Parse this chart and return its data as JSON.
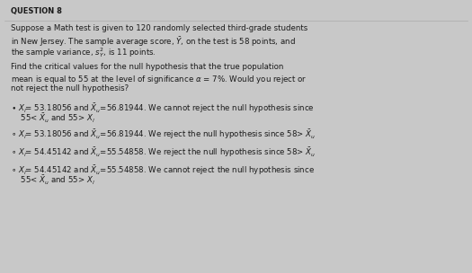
{
  "title": "QUESTION 8",
  "background_color": "#c8c8c8",
  "text_color": "#1a1a1a",
  "p1_lines": [
    "Suppose a Math test is given to 120 randomly selected third-grade students",
    "in New Jersey. The sample average score, $\\bar{Y}$, on the test is 58 points, and",
    "the sample variance, $s^2_Y$, is 11 points."
  ],
  "p2_lines": [
    "Find the critical values for the null hypothesis that the true population",
    "mean is equal to 55 at the level of significance $\\alpha$ = 7%. Would you reject or",
    "not reject the null hypothesis?"
  ],
  "options": [
    {
      "selected": true,
      "lines": [
        "$\\bullet$ $X_l$= 53.18056 and $\\bar{X}_u$=56.81944. We cannot reject the null hypothesis since",
        "    55< $\\bar{X}_u$ and 55> $X_l$"
      ]
    },
    {
      "selected": false,
      "lines": [
        "$\\circ$ $X_l$= 53.18056 and $\\bar{X}_u$=56.81944. We reject the null hypothesis since 58> $\\bar{X}_u$"
      ]
    },
    {
      "selected": false,
      "lines": [
        "$\\circ$ $X_l$= 54.45142 and $\\bar{X}_u$=55.54858. We reject the null hypothesis since 58> $\\bar{X}_u$"
      ]
    },
    {
      "selected": false,
      "lines": [
        "$\\circ$ $X_l$= 54.45142 and $\\bar{X}_u$=55.54858. We cannot reject the null hypothesis since",
        "    55< $\\bar{X}_u$ and 55> $X_l$"
      ]
    }
  ],
  "title_fontsize": 6.0,
  "body_fontsize": 6.2,
  "option_fontsize": 6.2
}
